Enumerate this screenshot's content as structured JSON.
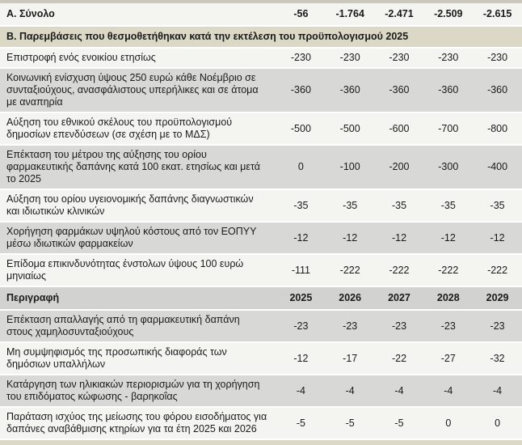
{
  "colors": {
    "section_bg": "#dbd8c5",
    "stripe_gray": "#d8d8d6",
    "stripe_white": "#f4f4f1",
    "header_bg": "#d2d2d0",
    "edge_top": "#cbc8bb",
    "text": "#1a1a1a"
  },
  "table": {
    "year_columns": [
      "2025",
      "2026",
      "2027",
      "2028",
      "2029"
    ],
    "rows": [
      {
        "type": "total",
        "label": "Α. Σύνολο",
        "values": [
          "-56",
          "-1.764",
          "-2.471",
          "-2.509",
          "-2.615"
        ]
      },
      {
        "type": "section",
        "label": "Β. Παρεμβάσεις που θεσμοθετήθηκαν κατά την εκτέλεση του προϋπολογισμού 2025"
      },
      {
        "type": "data",
        "shade": "white",
        "label": "Επιστροφή ενός ενοικίου ετησίως",
        "values": [
          "-230",
          "-230",
          "-230",
          "-230",
          "-230"
        ]
      },
      {
        "type": "data",
        "shade": "gray",
        "label": "Κοινωνική ενίσχυση ύψους 250 ευρώ κάθε Νοέμβριο σε συνταξιούχους, ανασφάλιστους υπερήλικες και σε άτομα με αναπηρία",
        "values": [
          "-360",
          "-360",
          "-360",
          "-360",
          "-360"
        ]
      },
      {
        "type": "data",
        "shade": "white",
        "label": "Αύξηση του εθνικού σκέλους του προϋπολογισμού δημοσίων επενδύσεων (σε σχέση με το ΜΔΣ)",
        "values": [
          "-500",
          "-500",
          "-600",
          "-700",
          "-800"
        ]
      },
      {
        "type": "data",
        "shade": "gray",
        "label": "Επέκταση του μέτρου της αύξησης του ορίου φαρμακευτικής δαπάνης κατά 100 εκατ. ετησίως και μετά το 2025",
        "values": [
          "0",
          "-100",
          "-200",
          "-300",
          "-400"
        ]
      },
      {
        "type": "data",
        "shade": "white",
        "label": "Αύξηση του ορίου υγειονομικής δαπάνης διαγνωστικών και ιδιωτικών κλινικών",
        "values": [
          "-35",
          "-35",
          "-35",
          "-35",
          "-35"
        ]
      },
      {
        "type": "data",
        "shade": "gray",
        "label": "Χορήγηση φαρμάκων υψηλού κόστους από τον ΕΟΠΥΥ μέσω ιδιωτικών φαρμακείων",
        "values": [
          "-12",
          "-12",
          "-12",
          "-12",
          "-12"
        ]
      },
      {
        "type": "data",
        "shade": "white",
        "label": "Επίδομα επικινδυνότητας ένστολων ύψους 100 ευρώ μηνιαίως",
        "values": [
          "-111",
          "-222",
          "-222",
          "-222",
          "-222"
        ]
      },
      {
        "type": "header",
        "label": "Περιγραφή",
        "values": [
          "2025",
          "2026",
          "2027",
          "2028",
          "2029"
        ]
      },
      {
        "type": "data",
        "shade": "gray",
        "label": "Επέκταση απαλλαγής από τη φαρμακευτική δαπάνη στους χαμηλοσυνταξιούχους",
        "values": [
          "-23",
          "-23",
          "-23",
          "-23",
          "-23"
        ]
      },
      {
        "type": "data",
        "shade": "white",
        "label": "Μη συμψηφισμός της προσωπικής διαφοράς των δημόσιων υπαλλήλων",
        "values": [
          "-12",
          "-17",
          "-22",
          "-27",
          "-32"
        ]
      },
      {
        "type": "data",
        "shade": "gray",
        "label": "Κατάργηση των ηλικιακών περιορισμών για τη χορήγηση του επιδόματος κώφωσης - βαρηκοΐας",
        "values": [
          "-4",
          "-4",
          "-4",
          "-4",
          "-4"
        ]
      },
      {
        "type": "data",
        "shade": "white",
        "label": "Παράταση ισχύος της μείωσης του φόρου εισοδήματος για δαπάνες αναβάθμισης κτηρίων για τα έτη 2025 και 2026",
        "values": [
          "-5",
          "-5",
          "-5",
          "0",
          "0"
        ]
      }
    ]
  }
}
